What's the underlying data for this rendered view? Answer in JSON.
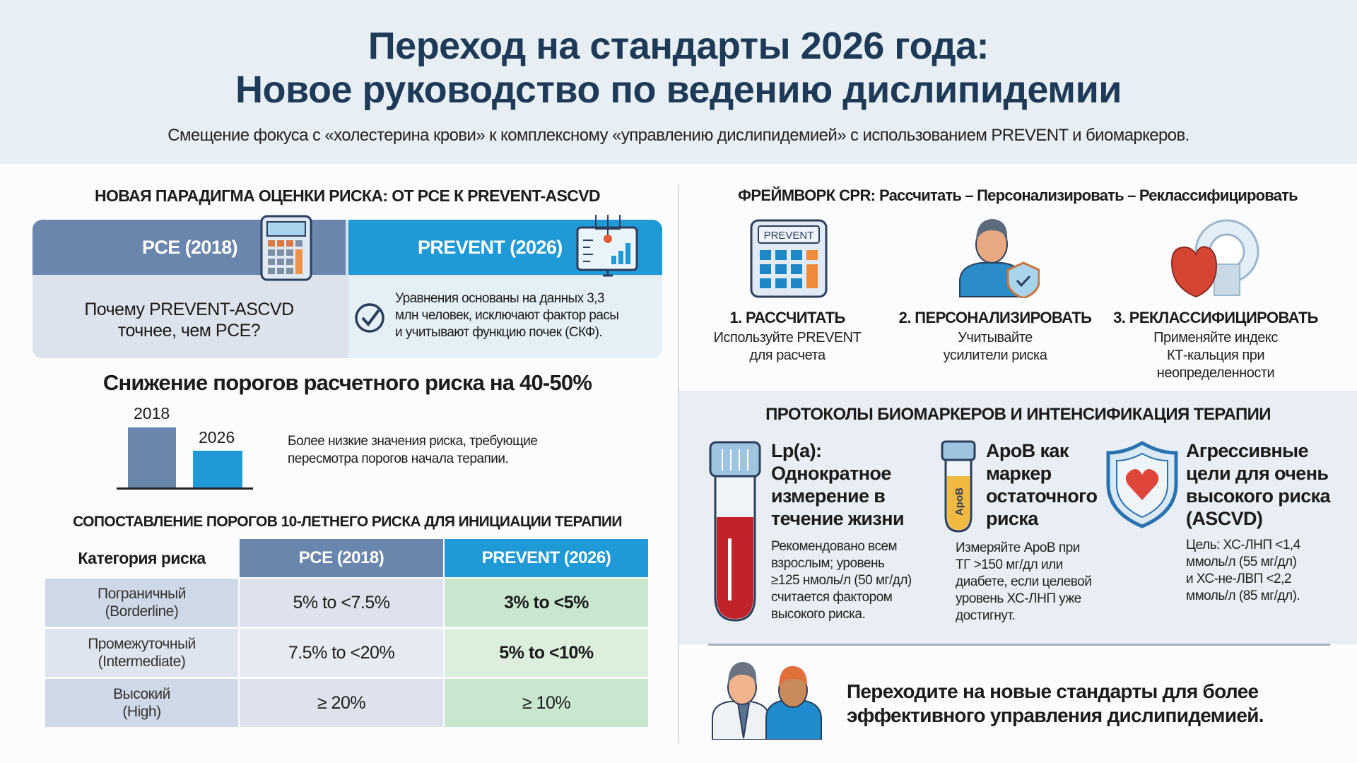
{
  "header": {
    "title_line1": "Переход на стандарты 2026 года:",
    "title_line2": "Новое руководство по ведению дислипидемии",
    "subtitle": "Смещение фокуса с «холестерина крови» к комплексному «управлению дислипидемией» с использованием PREVENT и биомаркеров."
  },
  "paradigm": {
    "heading": "НОВАЯ ПАРАДИГМА ОЦЕНКИ РИСКА: ОТ PCE К PREVENT-ASCVD",
    "left_label": "PCE (2018)",
    "right_label": "PREVENT (2026)",
    "question_line1": "Почему PREVENT-ASCVD",
    "question_line2": "точнее, чем PCE?",
    "answer_line1": "Уравнения основаны на данных 3,3",
    "answer_line2": "млн человек, исключают фактор расы",
    "answer_line3": "и учитывают функцию почек (СКФ).",
    "colors": {
      "pce": "#6b86ad",
      "prevent": "#1f9ad6"
    }
  },
  "reduction": {
    "heading": "Снижение порогов расчетного риска на 40-50%",
    "bar1_label": "2018",
    "bar2_label": "2026",
    "note_line1": "Более низкие значения риска, требующие",
    "note_line2": "пересмотра порогов начала терапии."
  },
  "table": {
    "heading": "СОПОСТАВЛЕНИЕ ПОРОГОВ 10-ЛЕТНЕГО РИСКА ДЛЯ ИНИЦИАЦИИ ТЕРАПИИ",
    "headers": [
      "Категория риска",
      "PCE (2018)",
      "PREVENT (2026)"
    ],
    "rows": [
      {
        "cat1": "Пограничный",
        "cat2": "(Borderline)",
        "pce": "5% to <7.5%",
        "prevent": "3% to <5%"
      },
      {
        "cat1": "Промежуточный",
        "cat2": "(Intermediate)",
        "pce": "7.5% to <20%",
        "prevent": "5% to <10%"
      },
      {
        "cat1": "Высокий",
        "cat2": "(High)",
        "pce": "≥ 20%",
        "prevent": "≥ 10%"
      }
    ]
  },
  "cpr": {
    "heading_bold": "ФРЕЙМВОРК CPR:",
    "heading_rest": "Рассчитать – Персонализировать – Реклассифицировать",
    "calc_screen": "PREVENT",
    "steps": [
      {
        "title": "1. РАССЧИТАТЬ",
        "line1": "Используйте PREVENT",
        "line2": "для расчета",
        "line3": ""
      },
      {
        "title": "2. ПЕРСОНАЛИЗИРОВАТЬ",
        "line1": "Учитывайте",
        "line2": "усилители риска",
        "line3": ""
      },
      {
        "title": "3. РЕКЛАССИФИЦИРОВАТЬ",
        "line1": "Применяйте индекс",
        "line2": "КТ-кальция при",
        "line3": "неопределенности"
      }
    ]
  },
  "biomarkers": {
    "heading": "ПРОТОКОЛЫ БИОМАРКЕРОВ И ИНТЕНСИФИКАЦИЯ ТЕРАПИИ",
    "tube_label": "ApoB",
    "items": [
      {
        "title": [
          "Lp(a):",
          "Однократное",
          "измерение в",
          "течение жизни"
        ],
        "desc": [
          "Рекомендовано всем",
          "взрослым; уровень",
          "≥125 нмоль/л (50 мг/дл)",
          "считается фактором",
          "высокого риска."
        ]
      },
      {
        "title": [
          "ApoB как",
          "маркер",
          "остаточного",
          "риска"
        ],
        "desc": [
          "Измеряйте ApoB при",
          "ТГ >150 мг/дл или",
          "диабете, если целевой",
          "уровень ХС-ЛНП уже",
          "достигнут."
        ]
      },
      {
        "title": [
          "Агрессивные",
          "цели для очень",
          "высокого риска",
          "(ASCVD)"
        ],
        "desc": [
          "Цель: ХС-ЛНП <1,4",
          "ммоль/л (55 мг/дл)",
          "и ХС-не-ЛВП <2,2",
          "ммоль/л (85 мг/дл)."
        ]
      }
    ]
  },
  "footer": {
    "line1": "Переходите на новые стандарты для более",
    "line2": "эффективного управления дислипидемией."
  }
}
